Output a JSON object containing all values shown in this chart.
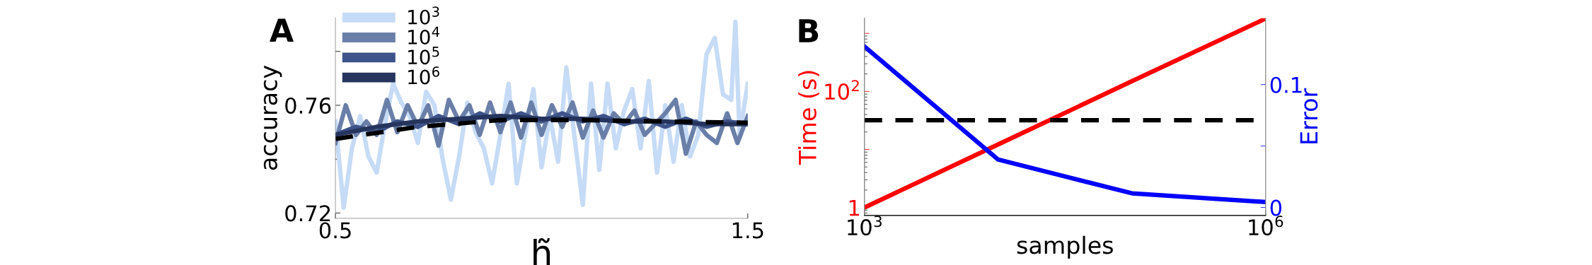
{
  "chart_data": [
    {
      "type": "line",
      "title": "A",
      "xlabel": "h̃",
      "ylabel": "accuracy",
      "xlim": [
        0.5,
        1.5
      ],
      "xticks": [
        0.5,
        1.5
      ],
      "ylim": [
        0.718,
        0.7925
      ],
      "yticks": [
        0.72,
        {
          "value": 0.74,
          "label": null
        },
        0.76,
        {
          "value": 0.78,
          "label": null
        }
      ],
      "legend": "top left",
      "grid": false,
      "series": [
        {
          "name": "10$^{3}$",
          "color": "#c6dbf5",
          "x": [
            0.5,
            0.52,
            0.54,
            0.56,
            0.58,
            0.6,
            0.62,
            0.64,
            0.66,
            0.68,
            0.7,
            0.72,
            0.74,
            0.76,
            0.78,
            0.8,
            0.82,
            0.84,
            0.86,
            0.88,
            0.9,
            0.92,
            0.94,
            0.96,
            0.98,
            1.0,
            1.02,
            1.04,
            1.06,
            1.08,
            1.1,
            1.12,
            1.14,
            1.16,
            1.18,
            1.2,
            1.22,
            1.24,
            1.26,
            1.28,
            1.3,
            1.32,
            1.34,
            1.36,
            1.38,
            1.4,
            1.42,
            1.44,
            1.46,
            1.47,
            1.48,
            1.5
          ],
          "values": [
            0.754,
            0.722,
            0.744,
            0.756,
            0.741,
            0.735,
            0.753,
            0.768,
            0.761,
            0.756,
            0.746,
            0.765,
            0.76,
            0.74,
            0.725,
            0.741,
            0.761,
            0.75,
            0.744,
            0.731,
            0.749,
            0.768,
            0.731,
            0.749,
            0.766,
            0.737,
            0.756,
            0.739,
            0.774,
            0.748,
            0.723,
            0.768,
            0.736,
            0.768,
            0.744,
            0.758,
            0.766,
            0.744,
            0.769,
            0.735,
            0.76,
            0.739,
            0.76,
            0.741,
            0.749,
            0.779,
            0.785,
            0.764,
            0.762,
            0.791,
            0.749,
            0.768
          ]
        },
        {
          "name": "10$^{4}$",
          "color": "#6a7fa8",
          "x": [
            0.5,
            0.525,
            0.55,
            0.575,
            0.6,
            0.625,
            0.65,
            0.675,
            0.7,
            0.725,
            0.75,
            0.775,
            0.8,
            0.825,
            0.85,
            0.875,
            0.9,
            0.925,
            0.95,
            0.975,
            1.0,
            1.025,
            1.05,
            1.075,
            1.1,
            1.125,
            1.15,
            1.175,
            1.2,
            1.225,
            1.25,
            1.275,
            1.3,
            1.325,
            1.35,
            1.375,
            1.4,
            1.425,
            1.45,
            1.475,
            1.5
          ],
          "values": [
            0.746,
            0.76,
            0.749,
            0.754,
            0.749,
            0.762,
            0.75,
            0.76,
            0.752,
            0.76,
            0.745,
            0.762,
            0.754,
            0.76,
            0.749,
            0.761,
            0.75,
            0.761,
            0.748,
            0.761,
            0.749,
            0.76,
            0.752,
            0.761,
            0.748,
            0.758,
            0.748,
            0.757,
            0.753,
            0.758,
            0.749,
            0.753,
            0.757,
            0.762,
            0.742,
            0.754,
            0.749,
            0.746,
            0.757,
            0.746,
            0.756
          ]
        },
        {
          "name": "10$^{5}$",
          "color": "#3d5389",
          "x": [
            0.5,
            0.55,
            0.6,
            0.65,
            0.7,
            0.75,
            0.8,
            0.85,
            0.9,
            0.95,
            1.0,
            1.05,
            1.1,
            1.15,
            1.2,
            1.25,
            1.3,
            1.35,
            1.4,
            1.45,
            1.5
          ],
          "values": [
            0.749,
            0.752,
            0.75,
            0.754,
            0.752,
            0.756,
            0.753,
            0.757,
            0.754,
            0.757,
            0.754,
            0.757,
            0.754,
            0.756,
            0.753,
            0.755,
            0.752,
            0.755,
            0.752,
            0.754,
            0.753
          ]
        },
        {
          "name": "10$^{6}$",
          "color": "#26355e",
          "x": [
            0.5,
            0.6,
            0.7,
            0.8,
            0.9,
            1.0,
            1.1,
            1.2,
            1.3,
            1.4,
            1.5
          ],
          "values": [
            0.749,
            0.752,
            0.754,
            0.755,
            0.756,
            0.755,
            0.755,
            0.754,
            0.754,
            0.753,
            0.753
          ]
        },
        {
          "color": "#000000",
          "line_style": "dashed",
          "x": [
            0.5,
            0.7,
            0.9,
            1.1,
            1.3,
            1.5
          ],
          "values": [
            0.7475,
            0.752,
            0.7545,
            0.7545,
            0.754,
            0.7535
          ]
        }
      ]
    },
    {
      "type": "line",
      "title": "B",
      "xlabel": "samples",
      "ylabel": "Time (s)",
      "y2label": "Error",
      "log": "xy",
      "grid": false,
      "legend": false,
      "xlim": [
        1000,
        1000000
      ],
      "xticks": [
        {
          "value": 1000,
          "label": "10$^{3}$"
        },
        {
          "value": 1000000,
          "label": "10$^{6}$"
        }
      ],
      "ylim": [
        0.73,
        1820
      ],
      "yticks": [
        1,
        {
          "value": 10,
          "label": null
        },
        {
          "value": 100,
          "label": "10$^{2}$"
        },
        {
          "value": 1000,
          "label": null
        }
      ],
      "y2lim": [
        -0.0065,
        0.154
      ],
      "y2ticks": [
        0,
        {
          "value": 0.05,
          "label": null
        },
        0.1
      ],
      "x": [
        1000,
        10000,
        100000,
        1000000
      ],
      "series": [
        {
          "color": "#ff0000",
          "values": [
            1,
            12.2,
            150,
            1800
          ]
        },
        {
          "color": "#0000ff",
          "axis": "y2",
          "values": [
            0.131,
            0.039,
            0.0115,
            0.0044
          ]
        }
      ],
      "ref_lines": [
        {
          "axis": "y2",
          "value": 0.071,
          "color": "#000000",
          "line_style": "dashed"
        }
      ]
    }
  ]
}
